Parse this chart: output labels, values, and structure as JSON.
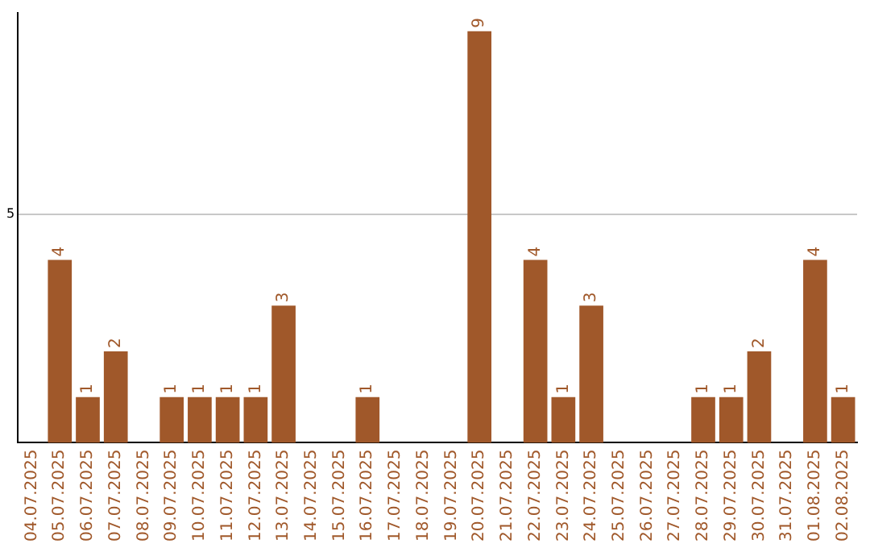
{
  "chart_data": {
    "type": "bar",
    "categories": [
      "04.07.2025",
      "05.07.2025",
      "06.07.2025",
      "07.07.2025",
      "08.07.2025",
      "09.07.2025",
      "10.07.2025",
      "11.07.2025",
      "12.07.2025",
      "13.07.2025",
      "14.07.2025",
      "15.07.2025",
      "16.07.2025",
      "17.07.2025",
      "18.07.2025",
      "19.07.2025",
      "20.07.2025",
      "21.07.2025",
      "22.07.2025",
      "23.07.2025",
      "24.07.2025",
      "25.07.2025",
      "26.07.2025",
      "27.07.2025",
      "28.07.2025",
      "29.07.2025",
      "30.07.2025",
      "31.07.2025",
      "01.08.2025",
      "02.08.2025"
    ],
    "values": [
      null,
      4,
      1,
      2,
      null,
      1,
      1,
      1,
      1,
      3,
      null,
      null,
      1,
      null,
      null,
      null,
      9,
      null,
      4,
      1,
      3,
      null,
      null,
      null,
      1,
      1,
      2,
      null,
      4,
      1
    ],
    "color": "#a0582a",
    "ylim": [
      0,
      9.4
    ],
    "yticks": [
      5
    ],
    "grid": "y",
    "data_labels": true
  }
}
